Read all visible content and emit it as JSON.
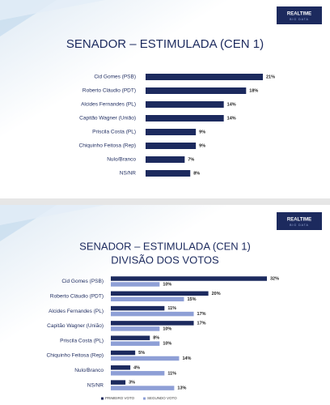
{
  "logo": {
    "title": "REALTIME",
    "subtitle": "BIG DATA"
  },
  "chart_data": [
    {
      "type": "bar",
      "title": "SENADOR – ESTIMULADA (CEN 1)",
      "categories": [
        "Cid Gomes (PSB)",
        "Roberto Cláudio (PDT)",
        "Alcides Fernandes (PL)",
        "Capitão Wagner (União)",
        "Priscila Costa (PL)",
        "Chiquinho Feitosa (Rep)",
        "Nulo/Branco",
        "NS/NR"
      ],
      "values": [
        21,
        18,
        14,
        14,
        9,
        9,
        7,
        8
      ],
      "value_labels": [
        "21%",
        "18%",
        "14%",
        "14%",
        "9%",
        "9%",
        "7%",
        "8%"
      ],
      "color": "#1c2a5e"
    },
    {
      "type": "bar",
      "title": "SENADOR – ESTIMULADA (CEN 1)",
      "subtitle": "DIVISÃO DOS VOTOS",
      "categories": [
        "Cid Gomes (PSB)",
        "Roberto Cláudio (PDT)",
        "Alcides Fernandes (PL)",
        "Capitão Wagner (União)",
        "Priscila Costa (PL)",
        "Chiquinho Feitosa (Rep)",
        "Nulo/Branco",
        "NS/NR"
      ],
      "series": [
        {
          "name": "PRIMEIRO VOTO",
          "color": "#1c2a5e",
          "values": [
            32,
            20,
            11,
            17,
            8,
            5,
            4,
            3
          ],
          "value_labels": [
            "32%",
            "20%",
            "11%",
            "17%",
            "8%",
            "5%",
            "4%",
            "3%"
          ]
        },
        {
          "name": "SEGUNDO VOTO",
          "color": "#8e9fd6",
          "values": [
            10,
            15,
            17,
            10,
            10,
            14,
            11,
            13
          ],
          "value_labels": [
            "10%",
            "15%",
            "17%",
            "10%",
            "10%",
            "14%",
            "11%",
            "13%"
          ]
        }
      ],
      "legend": "bottom"
    }
  ]
}
